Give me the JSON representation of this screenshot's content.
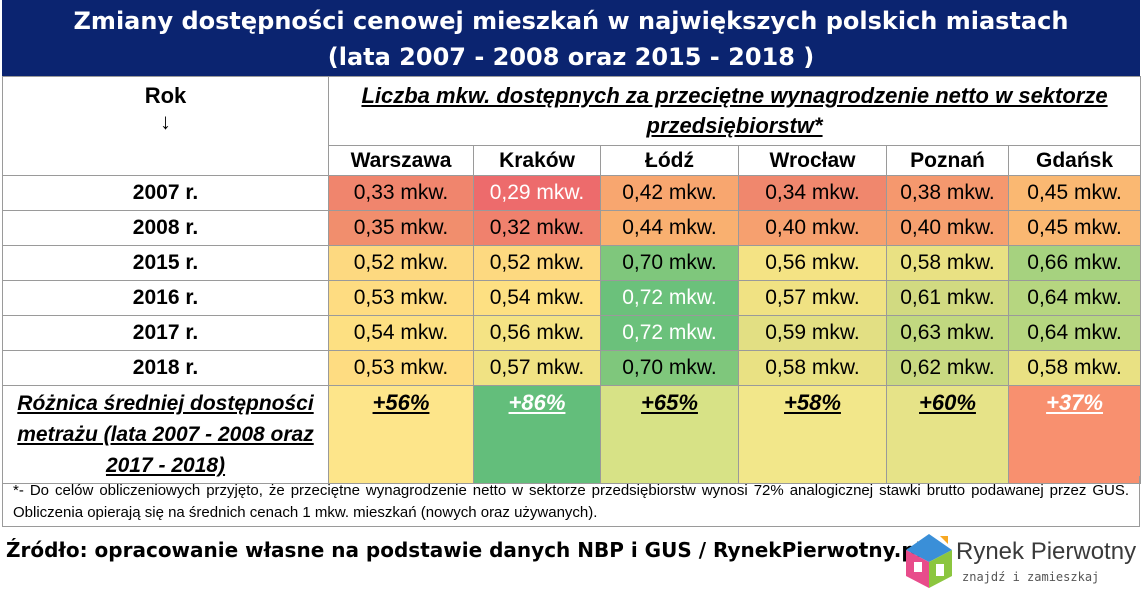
{
  "title": {
    "line1": "Zmiany dostępności cenowej mieszkań w największych polskich miastach",
    "line2": "(lata 2007 - 2008 oraz 2015 - 2018 )"
  },
  "header": {
    "rok": "Rok",
    "arrow": "↓",
    "metric": "Liczba mkw. dostępnych za przeciętne wynagrodzenie netto w sektorze przedsiębiorstw*"
  },
  "chart_data": {
    "type": "table",
    "columns": [
      "Warszawa",
      "Kraków",
      "Łódź",
      "Wrocław",
      "Poznań",
      "Gdańsk"
    ],
    "rows": [
      {
        "year": "2007 r.",
        "values": [
          "0,33 mkw.",
          "0,29 mkw.",
          "0,42 mkw.",
          "0,34 mkw.",
          "0,38 mkw.",
          "0,45 mkw."
        ],
        "colors": [
          "#f0856d",
          "#ed6b6c",
          "#f8a66f",
          "#f0876d",
          "#f5986e",
          "#fab872"
        ],
        "white": [
          false,
          true,
          false,
          false,
          false,
          false
        ]
      },
      {
        "year": "2008 r.",
        "values": [
          "0,35 mkw.",
          "0,32 mkw.",
          "0,44 mkw.",
          "0,40 mkw.",
          "0,40 mkw.",
          "0,45 mkw."
        ],
        "colors": [
          "#f18e6d",
          "#f0816d",
          "#f9b070",
          "#f6a06f",
          "#f6a06f",
          "#fab872"
        ],
        "white": [
          false,
          false,
          false,
          false,
          false,
          false
        ]
      },
      {
        "year": "2015 r.",
        "values": [
          "0,52 mkw.",
          "0,52 mkw.",
          "0,70 mkw.",
          "0,56 mkw.",
          "0,58 mkw.",
          "0,66 mkw."
        ],
        "colors": [
          "#fdd980",
          "#fdd980",
          "#7fc77c",
          "#f4e384",
          "#e9e183",
          "#a6d27f"
        ],
        "white": [
          false,
          false,
          false,
          false,
          false,
          false
        ]
      },
      {
        "year": "2016 r.",
        "values": [
          "0,53 mkw.",
          "0,54 mkw.",
          "0,72 mkw.",
          "0,57 mkw.",
          "0,61 mkw.",
          "0,64 mkw."
        ],
        "colors": [
          "#fedc81",
          "#fde082",
          "#6bc17b",
          "#f0e283",
          "#d1da81",
          "#b6d680"
        ],
        "white": [
          false,
          false,
          true,
          false,
          false,
          false
        ]
      },
      {
        "year": "2017 r.",
        "values": [
          "0,54 mkw.",
          "0,56 mkw.",
          "0,72 mkw.",
          "0,59 mkw.",
          "0,63 mkw.",
          "0,64 mkw."
        ],
        "colors": [
          "#fde082",
          "#f4e384",
          "#6bc17b",
          "#e2df83",
          "#c1d880",
          "#b6d680"
        ],
        "white": [
          false,
          false,
          true,
          false,
          false,
          false
        ]
      },
      {
        "year": "2018 r.",
        "values": [
          "0,53 mkw.",
          "0,57 mkw.",
          "0,70 mkw.",
          "0,58 mkw.",
          "0,62 mkw.",
          "0,58 mkw."
        ],
        "colors": [
          "#fedc81",
          "#f0e283",
          "#7fc77c",
          "#e9e183",
          "#c9d981",
          "#e9e183"
        ],
        "white": [
          false,
          false,
          false,
          false,
          false,
          false
        ]
      }
    ],
    "difference": {
      "label": "Różnica średniej dostępności metrażu (lata 2007 - 2008 oraz 2017 - 2018)",
      "values": [
        "+56%",
        "+86%",
        "+65%",
        "+58%",
        "+60%",
        "+37%"
      ],
      "colors": [
        "#fde58a",
        "#63be7b",
        "#d7e286",
        "#f2e78a",
        "#e6e388",
        "#f8906f"
      ],
      "white": [
        false,
        true,
        false,
        false,
        false,
        true
      ]
    }
  },
  "footnote": "*- Do celów obliczeniowych przyjęto, że przeciętne wynagrodzenie netto w sektorze przedsiębiorstw wynosi 72% analogicznej stawki brutto podawanej przez GUS. Obliczenia opierają się na średnich cenach 1 mkw. mieszkań (nowych oraz używanych).",
  "source": "Źródło: opracowanie własne na podstawie danych NBP i GUS / RynekPierwotny.pl",
  "logo": {
    "name": "Rynek Pierwotny",
    "tagline": "znajdź i zamieszkaj",
    "icon": "house-logo-icon",
    "colors": [
      "#3a8fd8",
      "#e84c8b",
      "#8cc63f",
      "#f7a823"
    ]
  }
}
